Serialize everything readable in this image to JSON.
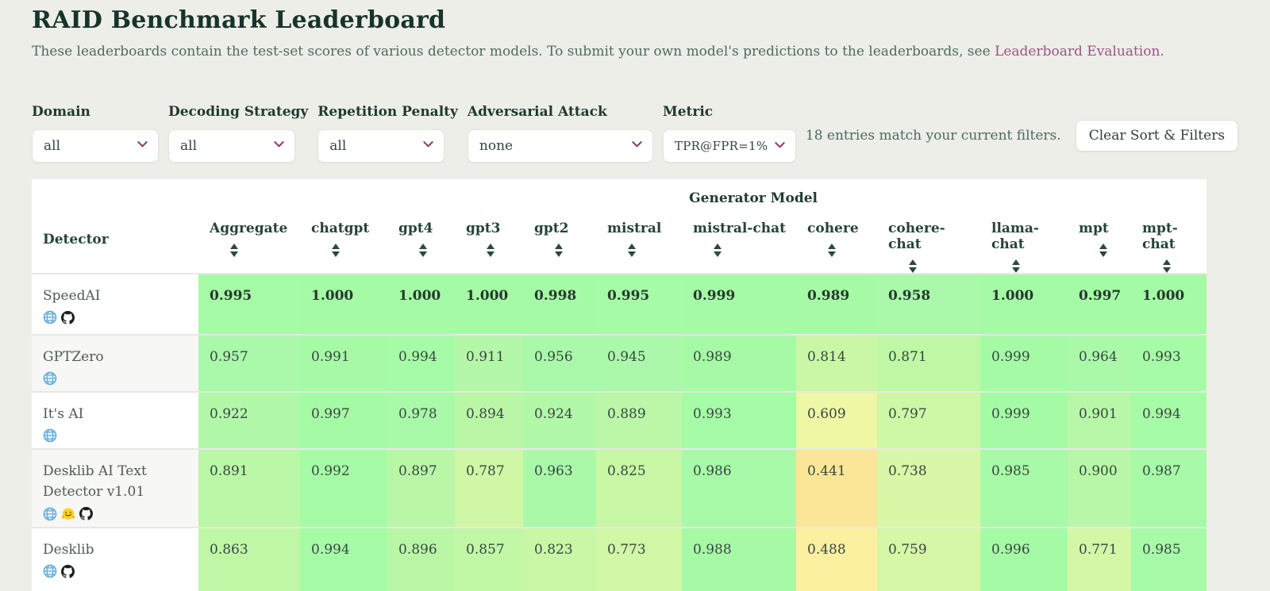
{
  "page": {
    "title": "RAID Benchmark Leaderboard",
    "subtitle_text": "These leaderboards contain the test-set scores of various detector models. To submit your own model's predictions to the leaderboards, see ",
    "subtitle_link": "Leaderboard Evaluation."
  },
  "filters": [
    {
      "label": "Domain",
      "value": "all"
    },
    {
      "label": "Decoding Strategy",
      "value": "all"
    },
    {
      "label": "Repetition Penalty",
      "value": "all"
    },
    {
      "label": "Adversarial Attack",
      "value": "none"
    },
    {
      "label": "Metric",
      "value": "TPR@FPR=1%"
    }
  ],
  "status_text": "18 entries match your current filters.",
  "clear_button_label": "Clear Sort & Filters",
  "colors": {
    "accent_link": "#9d5288",
    "select_chevron": "#8e3a6d",
    "header_text": "#25433a",
    "page_background": "#eceee7"
  },
  "table": {
    "group_header": "Generator Model",
    "detector_header": "Detector",
    "columns": [
      "Aggregate",
      "chatgpt",
      "gpt4",
      "gpt3",
      "gpt2",
      "mistral",
      "mistral-chat",
      "cohere",
      "cohere-chat",
      "llama-chat",
      "mpt",
      "mpt-chat"
    ],
    "rows": [
      {
        "detector": "SpeedAI",
        "icons": [
          "globe-icon",
          "github-icon"
        ],
        "bold": true,
        "values": [
          "0.995",
          "1.000",
          "1.000",
          "1.000",
          "0.998",
          "0.995",
          "0.999",
          "0.989",
          "0.958",
          "1.000",
          "0.997",
          "1.000"
        ]
      },
      {
        "detector": "GPTZero",
        "icons": [
          "globe-icon"
        ],
        "bold": false,
        "values": [
          "0.957",
          "0.991",
          "0.994",
          "0.911",
          "0.956",
          "0.945",
          "0.989",
          "0.814",
          "0.871",
          "0.999",
          "0.964",
          "0.993"
        ]
      },
      {
        "detector": "It's AI",
        "icons": [
          "globe-icon"
        ],
        "bold": false,
        "values": [
          "0.922",
          "0.997",
          "0.978",
          "0.894",
          "0.924",
          "0.889",
          "0.993",
          "0.609",
          "0.797",
          "0.999",
          "0.901",
          "0.994"
        ]
      },
      {
        "detector": "Desklib AI Text Detector v1.01",
        "icons": [
          "globe-icon",
          "huggingface-icon",
          "github-icon"
        ],
        "bold": false,
        "values": [
          "0.891",
          "0.992",
          "0.897",
          "0.787",
          "0.963",
          "0.825",
          "0.986",
          "0.441",
          "0.738",
          "0.985",
          "0.900",
          "0.987"
        ]
      },
      {
        "detector": "Desklib",
        "icons": [
          "globe-icon",
          "github-icon"
        ],
        "bold": false,
        "values": [
          "0.863",
          "0.994",
          "0.896",
          "0.857",
          "0.823",
          "0.773",
          "0.988",
          "0.488",
          "0.759",
          "0.996",
          "0.771",
          "0.985"
        ]
      }
    ],
    "score_colormap": [
      [
        0.4,
        "#f9dd90"
      ],
      [
        0.5,
        "#fdf2a2"
      ],
      [
        0.62,
        "#eef8a4"
      ],
      [
        0.75,
        "#d7f7a6"
      ],
      [
        0.88,
        "#bdf7a6"
      ],
      [
        0.95,
        "#abf8ab"
      ],
      [
        1.0,
        "#a5fba5"
      ]
    ]
  }
}
